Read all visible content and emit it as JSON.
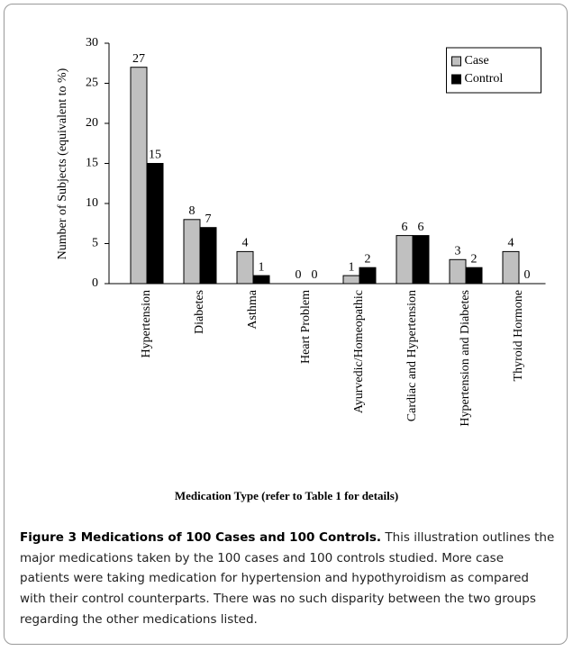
{
  "chart_data": {
    "type": "bar",
    "y_label": "Number of Subjects (equivalent to %)",
    "x_label": "Medication Type (refer to Table 1 for details)",
    "categories": [
      "Hypertension",
      "Diabetes",
      "Asthma",
      "Heart Problem",
      "Ayurvedic/Homeopathic",
      "Cardiac and Hypertension",
      "Hypertension and Diabetes",
      "Thyroid Hormone"
    ],
    "series": [
      {
        "name": "Case",
        "color": "#c0c0c0",
        "values": [
          27,
          8,
          4,
          0,
          1,
          6,
          3,
          4
        ]
      },
      {
        "name": "Control",
        "color": "#000000",
        "values": [
          15,
          7,
          1,
          0,
          2,
          6,
          2,
          0
        ]
      }
    ],
    "ylim": [
      0,
      30
    ],
    "yticks": [
      0,
      5,
      10,
      15,
      20,
      25,
      30
    ],
    "legend": "upper right"
  },
  "caption": {
    "title": "Figure 3 Medications of 100 Cases and 100 Controls.",
    "text": "This illustration outlines the major medications taken by the 100 cases and 100 controls studied. More case patients were taking medication for hypertension and hypothyroidism as compared with their control counterparts. There was no such disparity between the two groups regarding the other medications listed."
  }
}
